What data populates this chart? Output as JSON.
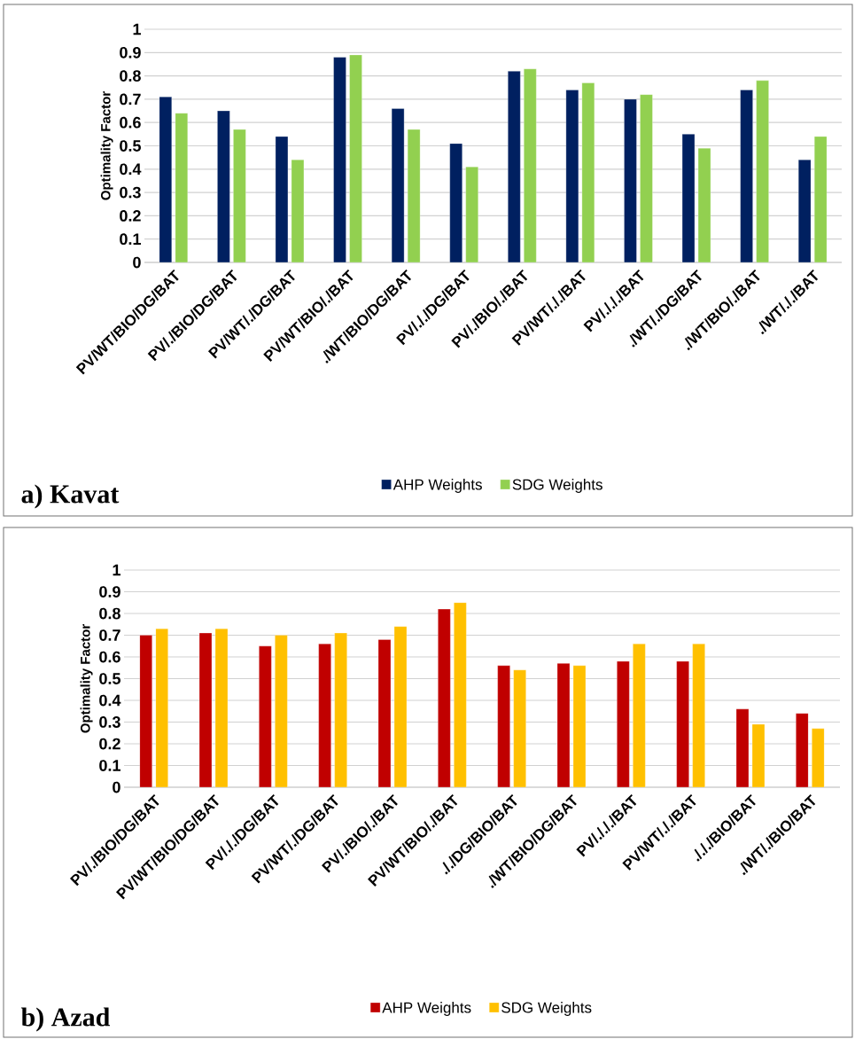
{
  "chart_data": [
    {
      "type": "bar",
      "title": "a) Kavat",
      "ylabel": "Optimality Factor",
      "categories": [
        "PV/WT/BIO/DG/BAT",
        "PV/./BIO/DG/BAT",
        "PV/WT/./DG/BAT",
        "PV/WT/BIO/./BAT",
        "./WT/BIO/DG/BAT",
        "PV/././DG/BAT",
        "PV/./BIO/./BAT",
        "PV/WT/././BAT",
        "PV/./././BAT",
        "./WT/./DG/BAT",
        "./WT/BIO/./BAT",
        "./WT/././BAT"
      ],
      "series": [
        {
          "name": "AHP Weights",
          "color": "#002060",
          "values": [
            0.71,
            0.65,
            0.54,
            0.88,
            0.66,
            0.51,
            0.82,
            0.74,
            0.7,
            0.55,
            0.74,
            0.44
          ]
        },
        {
          "name": "SDG Weights",
          "color": "#92d050",
          "values": [
            0.64,
            0.57,
            0.44,
            0.89,
            0.57,
            0.41,
            0.83,
            0.77,
            0.72,
            0.49,
            0.78,
            0.54
          ]
        }
      ],
      "ylim": [
        0,
        1
      ],
      "yticks": [
        0,
        0.1,
        0.2,
        0.3,
        0.4,
        0.5,
        0.6,
        0.7,
        0.8,
        0.9,
        1
      ],
      "grid": "y",
      "legend": "bottom"
    },
    {
      "type": "bar",
      "title": "b) Azad",
      "ylabel": "Optimality Factor",
      "categories": [
        "PV/./BIO/DG/BAT",
        "PV/WT/BIO/DG/BAT",
        "PV/././DG/BAT",
        "PV/WT/./DG/BAT",
        "PV/./BIO/./BAT",
        "PV/WT/BIO/./BAT",
        "././DG/BIO/BAT",
        "./WT/BIO/DG/BAT",
        "PV/./././BAT",
        "PV/WT/././BAT",
        "./././BIO/BAT",
        "./WT/./BIO/BAT"
      ],
      "series": [
        {
          "name": "AHP Weights",
          "color": "#c00000",
          "values": [
            0.7,
            0.71,
            0.65,
            0.66,
            0.68,
            0.82,
            0.56,
            0.57,
            0.58,
            0.58,
            0.36,
            0.34
          ]
        },
        {
          "name": "SDG Weights",
          "color": "#ffc000",
          "values": [
            0.73,
            0.73,
            0.7,
            0.71,
            0.74,
            0.85,
            0.54,
            0.56,
            0.66,
            0.66,
            0.29,
            0.27
          ]
        }
      ],
      "ylim": [
        0,
        1
      ],
      "yticks": [
        0,
        0.1,
        0.2,
        0.3,
        0.4,
        0.5,
        0.6,
        0.7,
        0.8,
        0.9,
        1
      ],
      "grid": "y",
      "legend": "bottom"
    }
  ]
}
